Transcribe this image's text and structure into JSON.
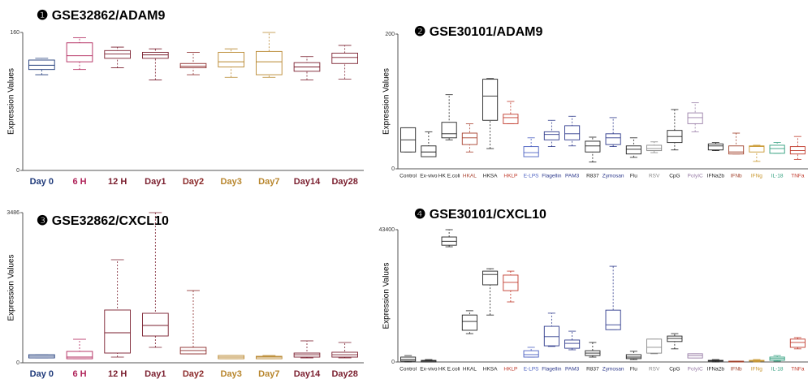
{
  "chart_data": [
    {
      "type": "box",
      "title": "❶ GSE32862/ADAM9",
      "ylabel": "Expression Values",
      "categories": [
        "Day 0",
        "6 H",
        "12 H",
        "Day1",
        "Day2",
        "Day3",
        "Day7",
        "Day14",
        "Day28"
      ],
      "colors": [
        "#1f3a7a",
        "#b0245a",
        "#7a1e2e",
        "#7a1e2e",
        "#8b2a2a",
        "#b8862d",
        "#b8862d",
        "#7a1e2e",
        "#7a1e2e"
      ],
      "min": [
        111,
        117,
        119,
        105,
        111,
        108,
        108,
        105,
        106
      ],
      "q1": [
        117,
        126,
        130,
        130,
        119,
        120,
        111,
        115,
        124
      ],
      "median": [
        122,
        133,
        135,
        134,
        121,
        126,
        126,
        120,
        131
      ],
      "q3": [
        128,
        148,
        139,
        137,
        124,
        137,
        138,
        125,
        136
      ],
      "max": [
        130,
        154,
        143,
        141,
        137,
        141,
        160,
        132,
        145
      ],
      "ylim": [
        0,
        160
      ],
      "yticks": [
        0,
        160
      ]
    },
    {
      "type": "box",
      "title": "❷ GSE30101/ADAM9",
      "ylabel": "Expression Values",
      "categories": [
        "Control",
        "Ex-vivo",
        "HK E.coli",
        "HKAL",
        "HKSA",
        "HKLP",
        "E-LPS",
        "Flagellin",
        "PAM3",
        "R837",
        "Zymosan",
        "Flu",
        "RSV",
        "CpG",
        "PolyIC",
        "IFNa2b",
        "IFNb",
        "IFNg",
        "IL-18",
        "TNFa"
      ],
      "colors": [
        "#222222",
        "#222222",
        "#222222",
        "#a8402e",
        "#222222",
        "#c0392b",
        "#4a5fc1",
        "#2e3a8c",
        "#2e3a8c",
        "#222222",
        "#2e3a8c",
        "#222222",
        "#888888",
        "#222222",
        "#9a7fa8",
        "#222222",
        "#a0402a",
        "#c8962d",
        "#2e9e7c",
        "#c0392b"
      ],
      "min": [
        25,
        18,
        43,
        25,
        30,
        67,
        18,
        33,
        34,
        10,
        33,
        17,
        24,
        28,
        55,
        27,
        22,
        11,
        23,
        14
      ],
      "q1": [
        25,
        18,
        46,
        36,
        72,
        67,
        18,
        43,
        43,
        25,
        36,
        22,
        27,
        39,
        67,
        28,
        22,
        25,
        23,
        22
      ],
      "median": [
        43,
        25,
        52,
        46,
        108,
        76,
        24,
        51,
        52,
        34,
        46,
        29,
        30,
        48,
        76,
        34,
        25,
        33,
        30,
        27
      ],
      "q3": [
        61,
        34,
        69,
        53,
        133,
        81,
        33,
        55,
        64,
        41,
        52,
        34,
        35,
        57,
        83,
        37,
        34,
        34,
        35,
        33
      ],
      "max": [
        61,
        55,
        110,
        67,
        134,
        100,
        46,
        72,
        78,
        47,
        76,
        46,
        40,
        88,
        98,
        39,
        53,
        35,
        39,
        48
      ],
      "ylim": [
        0,
        200
      ],
      "yticks": [
        0,
        200
      ]
    },
    {
      "type": "box",
      "title": "❸ GSE32862/CXCL10",
      "ylabel": "Expression Values",
      "categories": [
        "Day 0",
        "6 H",
        "12 H",
        "Day1",
        "Day2",
        "Day3",
        "Day7",
        "Day14",
        "Day28"
      ],
      "colors": [
        "#1f3a7a",
        "#b0245a",
        "#7a1e2e",
        "#7a1e2e",
        "#8b2a2a",
        "#b8862d",
        "#b8862d",
        "#7a1e2e",
        "#7a1e2e"
      ],
      "min": [
        113,
        94,
        132,
        358,
        207,
        94,
        94,
        113,
        113
      ],
      "q1": [
        113,
        94,
        226,
        622,
        207,
        94,
        94,
        132,
        132
      ],
      "median": [
        151,
        132,
        697,
        867,
        283,
        132,
        132,
        188,
        188
      ],
      "q3": [
        188,
        264,
        1225,
        1149,
        358,
        170,
        151,
        226,
        245
      ],
      "max": [
        188,
        546,
        2393,
        3486,
        1677,
        170,
        170,
        509,
        471
      ],
      "ylim": [
        0,
        3486
      ],
      "yticks": [
        0,
        3486
      ]
    },
    {
      "type": "box",
      "title": "❹ GSE30101/CXCL10",
      "ylabel": "Expression Values",
      "categories": [
        "Control",
        "Ex-vivo",
        "HK E.coli",
        "HKAL",
        "HKSA",
        "HKLP",
        "E-LPS",
        "Flagellin",
        "PAM3",
        "R837",
        "Zymosan",
        "Flu",
        "RSV",
        "CpG",
        "PolyIC",
        "IFNa2b",
        "IFNb",
        "IFNg",
        "IL-18",
        "TNFa"
      ],
      "colors": [
        "#222222",
        "#222222",
        "#222222",
        "#222222",
        "#222222",
        "#c0392b",
        "#4a5fc1",
        "#2e3a8c",
        "#2e3a8c",
        "#222222",
        "#2e3a8c",
        "#222222",
        "#888888",
        "#222222",
        "#9a7fa8",
        "#222222",
        "#a0402a",
        "#c8962d",
        "#2e9e7c",
        "#c0392b"
      ],
      "min": [
        0,
        0,
        37800,
        9300,
        15400,
        19700,
        1600,
        5100,
        4000,
        1600,
        10600,
        800,
        2700,
        4300,
        1300,
        0,
        0,
        0,
        270,
        4300
      ],
      "q1": [
        270,
        0,
        38300,
        10400,
        25300,
        23400,
        1600,
        5300,
        4500,
        2100,
        10600,
        1100,
        2900,
        6700,
        1300,
        270,
        0,
        270,
        530,
        4800
      ],
      "median": [
        800,
        270,
        39600,
        13300,
        28700,
        26100,
        2400,
        8300,
        6100,
        2900,
        12200,
        1600,
        4800,
        7700,
        2100,
        400,
        130,
        400,
        1100,
        6400
      ],
      "q3": [
        1600,
        530,
        41000,
        15400,
        29800,
        28500,
        3700,
        11700,
        7200,
        3700,
        17000,
        2400,
        7500,
        8500,
        2700,
        530,
        270,
        530,
        1600,
        7500
      ],
      "max": [
        2100,
        800,
        43400,
        16800,
        30600,
        29800,
        4800,
        16000,
        10100,
        6400,
        31400,
        3500,
        7500,
        9300,
        2700,
        800,
        270,
        800,
        2100,
        8000
      ],
      "ylim": [
        0,
        43400
      ],
      "yticks": [
        0,
        43400
      ]
    }
  ]
}
